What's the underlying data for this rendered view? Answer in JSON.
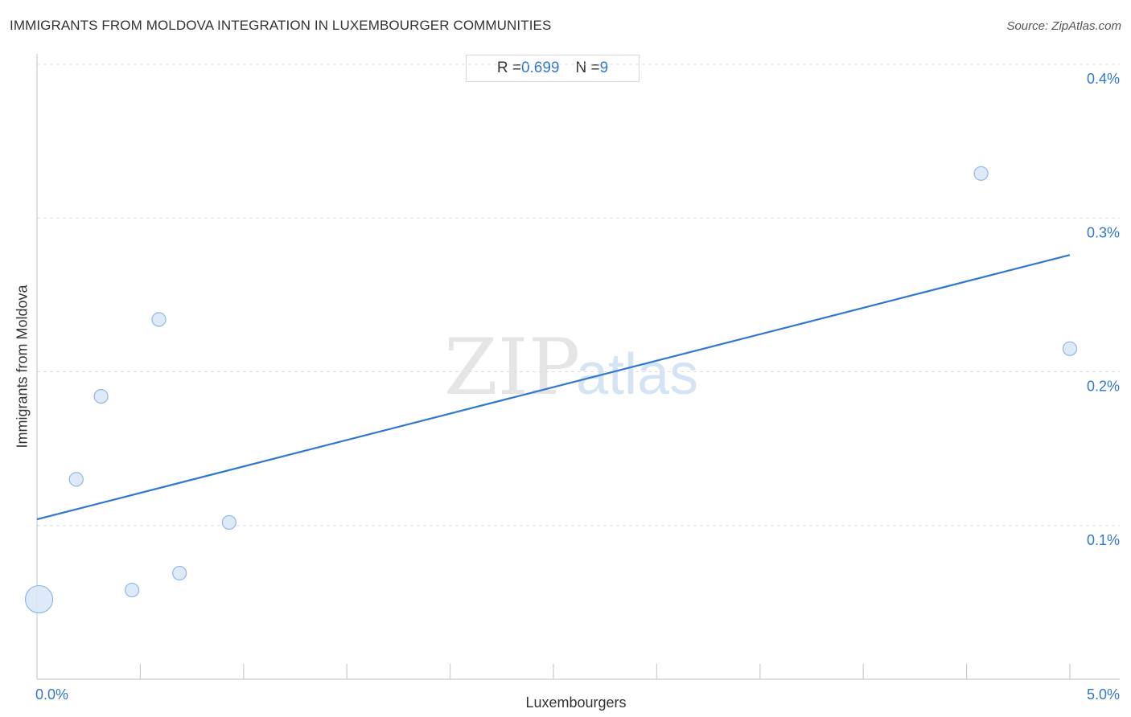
{
  "title": "IMMIGRANTS FROM MOLDOVA INTEGRATION IN LUXEMBOURGER COMMUNITIES",
  "source": "Source: ZipAtlas.com",
  "stats": {
    "r_label": "R = ",
    "r_value": "0.699",
    "n_label": "N = ",
    "n_value": "9"
  },
  "watermark": {
    "zip": "ZIP",
    "atlas": "atlas"
  },
  "colors": {
    "accent": "#2f77d1",
    "point_fill": "#dbe8f8",
    "point_stroke": "#8fb6e6",
    "grid": "#dddddd",
    "axis": "#cccccc"
  },
  "chart_data": {
    "type": "scatter",
    "title": "IMMIGRANTS FROM MOLDOVA INTEGRATION IN LUXEMBOURGER COMMUNITIES",
    "xlabel": "Luxembourgers",
    "ylabel": "Immigrants from Moldova",
    "xlim": [
      0,
      5
    ],
    "ylim": [
      0,
      0.4
    ],
    "x_ticks": [
      {
        "value": 0,
        "label": "0.0%"
      },
      {
        "value": 5,
        "label": "5.0%"
      }
    ],
    "y_ticks": [
      {
        "value": 0.1,
        "label": "0.1%"
      },
      {
        "value": 0.2,
        "label": "0.2%"
      },
      {
        "value": 0.3,
        "label": "0.3%"
      },
      {
        "value": 0.4,
        "label": "0.4%"
      }
    ],
    "grid": true,
    "points": [
      {
        "x": 0.01,
        "y": 0.052,
        "size": "large"
      },
      {
        "x": 0.19,
        "y": 0.13,
        "size": "normal"
      },
      {
        "x": 0.31,
        "y": 0.184,
        "size": "normal"
      },
      {
        "x": 0.46,
        "y": 0.058,
        "size": "normal"
      },
      {
        "x": 0.59,
        "y": 0.234,
        "size": "normal"
      },
      {
        "x": 0.69,
        "y": 0.069,
        "size": "normal"
      },
      {
        "x": 0.93,
        "y": 0.102,
        "size": "normal"
      },
      {
        "x": 4.57,
        "y": 0.329,
        "size": "normal"
      },
      {
        "x": 5.0,
        "y": 0.215,
        "size": "normal"
      }
    ],
    "trendline": {
      "x": [
        0,
        5
      ],
      "y": [
        0.104,
        0.276
      ]
    },
    "R": 0.699,
    "N": 9
  }
}
